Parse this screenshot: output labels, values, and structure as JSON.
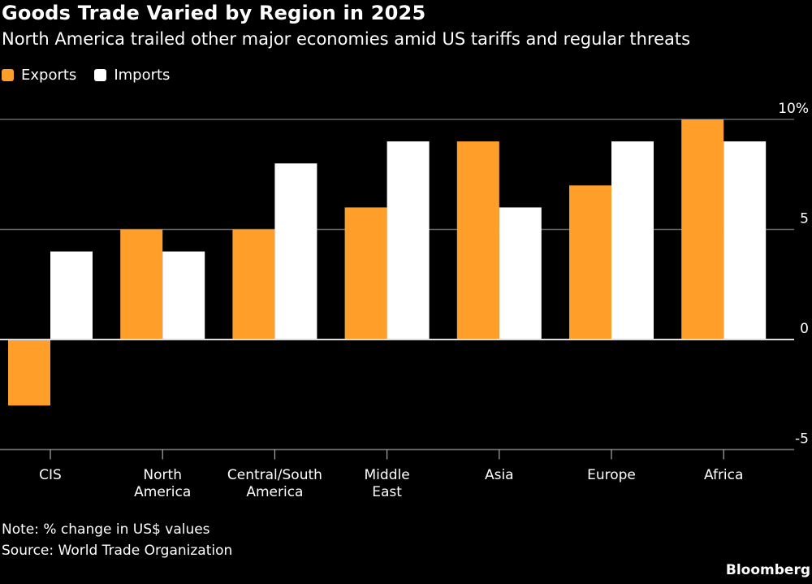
{
  "header": {
    "title": "Goods Trade Varied by Region in 2025",
    "subtitle": "North America trailed other major economies amid US tariffs and regular threats"
  },
  "footer": {
    "note": "Note: % change in US$ values",
    "source": "Source: World Trade Organization",
    "brand": "Bloomberg"
  },
  "colors": {
    "exports": "#FF9F2A",
    "imports": "#FFFFFF",
    "grid": "#666666",
    "axis": "#BBBBBB",
    "background": "#000000"
  },
  "chart_data": {
    "type": "bar",
    "title": "Goods Trade Varied by Region in 2025",
    "subtitle": "North America trailed other major economies amid US tariffs and regular threats",
    "xlabel": "",
    "ylabel": "% change in US$ values",
    "categories": [
      "CIS",
      "North America",
      "Central/South America",
      "Middle East",
      "Asia",
      "Europe",
      "Africa"
    ],
    "category_lines": [
      [
        "CIS"
      ],
      [
        "North",
        "America"
      ],
      [
        "Central/South",
        "America"
      ],
      [
        "Middle",
        "East"
      ],
      [
        "Asia"
      ],
      [
        "Europe"
      ],
      [
        "Africa"
      ]
    ],
    "series": [
      {
        "name": "Exports",
        "color": "#FF9F2A",
        "values": [
          -3,
          5,
          5,
          6,
          9,
          7,
          10
        ]
      },
      {
        "name": "Imports",
        "color": "#FFFFFF",
        "values": [
          4,
          4,
          8,
          9,
          6,
          9,
          9
        ]
      }
    ],
    "ylim": [
      -5,
      10
    ],
    "yticks": [
      10,
      5,
      0,
      -5
    ],
    "ytick_labels": [
      "10%",
      "5",
      "0",
      "-5"
    ],
    "grid": true,
    "y_axis_side": "right",
    "legend": {
      "position": "top-left",
      "entries": [
        "Exports",
        "Imports"
      ]
    }
  }
}
